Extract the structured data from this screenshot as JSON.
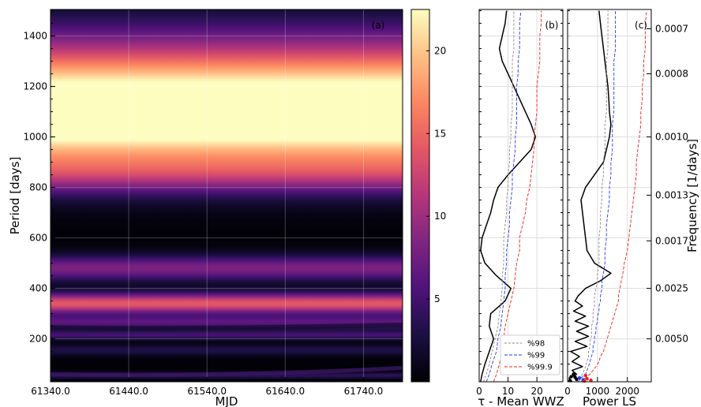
{
  "chart_data": [
    {
      "type": "heatmap",
      "panel_label": "(a)",
      "xlabel": "MJD",
      "ylabel": "Period [days]",
      "xlim": [
        61340,
        61790
      ],
      "ylim": [
        30,
        1505
      ],
      "x_ticks": [
        "61340.0",
        "61440.0",
        "61540.0",
        "61640.0",
        "61740.0"
      ],
      "y_ticks": [
        "200",
        "400",
        "600",
        "800",
        "1000",
        "1200",
        "1400"
      ],
      "colorbar": {
        "colormap": "magma",
        "range": [
          0,
          22.5
        ],
        "ticks": [
          "5",
          "10",
          "15",
          "20"
        ]
      },
      "power_bands": [
        {
          "period": 1050,
          "peak": 22.0,
          "width": 130
        },
        {
          "period": 1240,
          "peak": 13.0,
          "width": 140
        },
        {
          "period": 850,
          "peak": 6.0,
          "width": 55
        },
        {
          "period": 480,
          "peak": 8.0,
          "width": 35
        },
        {
          "period": 340,
          "peak": 14.0,
          "width": 28
        },
        {
          "period": 265,
          "peak": 6.0,
          "width": 18
        },
        {
          "period": 215,
          "peak": 5.0,
          "width": 12
        },
        {
          "period": 155,
          "peak": 3.0,
          "width": 15
        },
        {
          "period": 55,
          "peak": 4.0,
          "width": 8
        }
      ]
    },
    {
      "type": "line",
      "panel_label": "(b)",
      "xlabel": "τ - Mean WWZ",
      "xlim": [
        0,
        29
      ],
      "x_ticks": [
        "0",
        "10",
        "20"
      ],
      "legend": {
        "placement": "lower-right",
        "entries": [
          "%98",
          "%99",
          "%99.9"
        ]
      },
      "period": [
        30,
        60,
        100,
        150,
        200,
        250,
        300,
        350,
        400,
        450,
        500,
        550,
        600,
        650,
        700,
        750,
        800,
        850,
        900,
        950,
        1000,
        1050,
        1100,
        1150,
        1200,
        1250,
        1300,
        1350,
        1400,
        1450,
        1500
      ],
      "series": [
        {
          "name": "τ - Mean WWZ",
          "color": "#000000",
          "values": [
            0.5,
            1.0,
            2.0,
            3.5,
            5.0,
            3.5,
            4.0,
            9.0,
            11.0,
            6.0,
            2.0,
            0.5,
            1.0,
            2.5,
            4.0,
            5.0,
            6.5,
            10.0,
            14.0,
            18.0,
            19.5,
            18.0,
            16.0,
            14.0,
            12.0,
            10.0,
            8.0,
            7.0,
            8.0,
            9.0,
            9.5
          ]
        },
        {
          "name": "%98",
          "color": "#888888",
          "values": [
            1.5,
            2.5,
            3.5,
            4.5,
            5.5,
            6.5,
            7.0,
            7.5,
            8.0,
            8.0,
            8.5,
            8.5,
            8.5,
            9.0,
            9.5,
            9.5,
            10.0,
            10.0,
            10.5,
            10.5,
            11.0,
            11.0,
            11.5,
            11.5,
            11.5,
            11.5,
            11.5,
            12.0,
            12.0,
            12.0,
            12.0
          ]
        },
        {
          "name": "%99",
          "color": "#1f3bff",
          "values": [
            2.5,
            3.5,
            4.5,
            6.0,
            6.5,
            7.5,
            8.0,
            8.5,
            9.0,
            9.0,
            9.5,
            9.5,
            10.0,
            10.5,
            10.5,
            11.0,
            11.5,
            11.5,
            12.0,
            12.5,
            12.5,
            13.0,
            13.0,
            13.0,
            13.0,
            13.5,
            13.5,
            14.0,
            14.0,
            14.0,
            14.5
          ]
        },
        {
          "name": "%99.9",
          "color": "#e8221e",
          "values": [
            5.0,
            6.0,
            7.0,
            8.0,
            8.5,
            9.0,
            10.0,
            11.0,
            12.0,
            12.5,
            13.0,
            14.0,
            14.0,
            15.0,
            16.0,
            16.5,
            17.5,
            18.0,
            18.5,
            19.0,
            19.0,
            19.5,
            20.0,
            20.0,
            20.0,
            20.5,
            21.0,
            21.0,
            21.0,
            21.5,
            21.5
          ]
        }
      ]
    },
    {
      "type": "line",
      "panel_label": "(c)",
      "xlabel": "Power LS",
      "ylabel": "Frequency [1/days]",
      "xlim": [
        0,
        2800
      ],
      "x_ticks": [
        "0",
        "1000",
        "2000"
      ],
      "freq_ticks": [
        {
          "freq": 0.0007,
          "label": "0.0007"
        },
        {
          "freq": 0.0008,
          "label": "0.0008"
        },
        {
          "freq": 0.001,
          "label": "0.0010"
        },
        {
          "freq": 0.0013,
          "label": "0.0013"
        },
        {
          "freq": 0.0017,
          "label": "0.0017"
        },
        {
          "freq": 0.0025,
          "label": "0.0025"
        },
        {
          "freq": 0.005,
          "label": "0.0050"
        }
      ],
      "period": [
        30,
        45,
        60,
        75,
        90,
        110,
        130,
        150,
        170,
        190,
        210,
        230,
        250,
        270,
        290,
        310,
        330,
        350,
        370,
        400,
        430,
        460,
        500,
        550,
        600,
        650,
        700,
        750,
        800,
        850,
        900,
        950,
        1000,
        1050,
        1100,
        1150,
        1200,
        1250,
        1300,
        1350,
        1400,
        1450,
        1500
      ],
      "series": [
        {
          "name": "Power LS",
          "color": "#000000",
          "values": [
            150,
            50,
            300,
            150,
            500,
            150,
            400,
            100,
            650,
            250,
            700,
            300,
            700,
            250,
            600,
            200,
            500,
            250,
            350,
            600,
            1100,
            1450,
            900,
            650,
            600,
            550,
            500,
            450,
            600,
            900,
            1200,
            1300,
            1400,
            1450,
            1400,
            1380,
            1350,
            1300,
            1250,
            1200,
            1150,
            1100,
            1050
          ]
        },
        {
          "name": "%98",
          "color": "#888888",
          "values": [
            300,
            400,
            500,
            550,
            600,
            650,
            700,
            700,
            750,
            750,
            800,
            800,
            800,
            850,
            850,
            850,
            900,
            900,
            900,
            950,
            1000,
            1000,
            1050,
            1050,
            1050,
            1100,
            1100,
            1150,
            1150,
            1200,
            1200,
            1250,
            1250,
            1250,
            1300,
            1300,
            1300,
            1300,
            1300,
            1350,
            1350,
            1350,
            1350
          ]
        },
        {
          "name": "%99",
          "color": "#1f3bff",
          "values": [
            350,
            450,
            600,
            650,
            700,
            750,
            800,
            850,
            850,
            900,
            900,
            950,
            950,
            1000,
            1000,
            1050,
            1050,
            1100,
            1100,
            1150,
            1150,
            1200,
            1250,
            1250,
            1300,
            1300,
            1350,
            1400,
            1400,
            1450,
            1450,
            1500,
            1500,
            1500,
            1550,
            1550,
            1550,
            1550,
            1550,
            1600,
            1600,
            1600,
            1600
          ]
        },
        {
          "name": "%99.9",
          "color": "#e8221e",
          "values": [
            450,
            600,
            750,
            850,
            950,
            1050,
            1100,
            1200,
            1250,
            1300,
            1350,
            1400,
            1450,
            1500,
            1550,
            1600,
            1650,
            1700,
            1700,
            1750,
            1800,
            1850,
            1900,
            2000,
            2050,
            2100,
            2150,
            2200,
            2250,
            2300,
            2300,
            2350,
            2400,
            2450,
            2450,
            2500,
            2500,
            2550,
            2550,
            2600,
            2600,
            2600,
            2650
          ]
        }
      ]
    }
  ]
}
